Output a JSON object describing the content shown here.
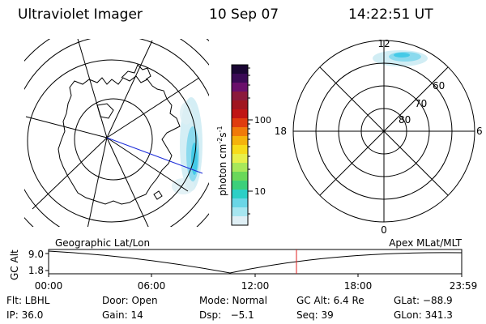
{
  "header": {
    "instrument": "Ultraviolet Imager",
    "date": "10 Sep 07",
    "time": "14:22:51 UT"
  },
  "colorbar": {
    "unit_label": "photon cm",
    "unit_exp1": "-2",
    "unit_mid": "s",
    "unit_exp2": "-1",
    "tick_100": "100",
    "tick_10": "10",
    "colors": [
      "#1a0633",
      "#3a0a55",
      "#6a0f6b",
      "#8b1a3c",
      "#a01620",
      "#c01515",
      "#e03c0e",
      "#f07a0a",
      "#f5b30c",
      "#f7dc1a",
      "#e8f04a",
      "#a8e85a",
      "#6ad85a",
      "#3cd07a",
      "#2ccfc6",
      "#6ad6e6",
      "#a6e6f0",
      "#dfeff5"
    ]
  },
  "polar": {
    "mlt_top": "12",
    "mlt_left": "18",
    "mlt_right": "6",
    "mlt_bottom": "0",
    "lat_60": "60",
    "lat_70": "70",
    "lat_80": "80"
  },
  "timeline": {
    "ylabel": "GC Alt",
    "ytick_top": "9.0",
    "ytick_bottom": "1.8",
    "label_left": "Geographic Lat/Lon",
    "label_right": "Apex MLat/MLT",
    "xticks": [
      "00:00",
      "06:00",
      "12:00",
      "18:00",
      "23:59"
    ],
    "marker_color": "#e02020"
  },
  "info": {
    "filter": "Flt: LBHL",
    "door": "Door: Open",
    "mode": "Mode: Normal",
    "gc_alt": "GC Alt: 6.4 Re",
    "glat": "GLat: −88.9",
    "ip": "IP: 36.0",
    "gain": "Gain: 14",
    "dsp": "Dsp:   −5.1",
    "seq": "Seq: 39",
    "glon": "GLon: 341.3"
  }
}
